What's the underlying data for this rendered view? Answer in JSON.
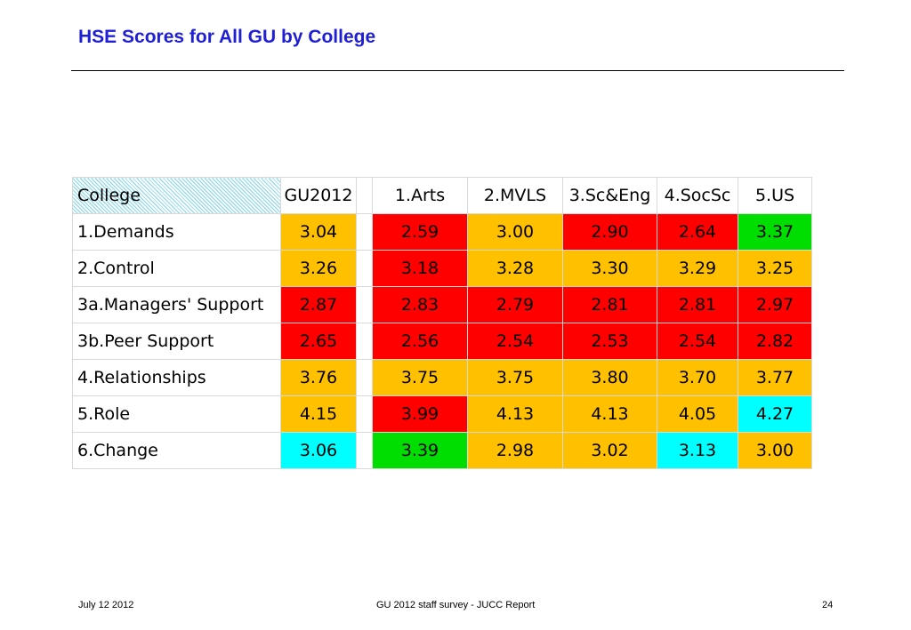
{
  "title": "HSE Scores for All GU by College",
  "colors": {
    "title": "#1f1fd6",
    "red": "#ff0000",
    "amber": "#ffc000",
    "green": "#00dd00",
    "cyan": "#00ffff",
    "header_hatch": "#7fd7ea"
  },
  "table": {
    "headers": [
      "College",
      "GU2012",
      "",
      "1.Arts",
      "2.MVLS",
      "3.Sc&Eng",
      "4.SocSc",
      "5.US"
    ],
    "rows": [
      {
        "label": "1.Demands",
        "values": [
          "3.04",
          "2.59",
          "3.00",
          "2.90",
          "2.64",
          "3.37"
        ],
        "colors": [
          "amber",
          "red",
          "amber",
          "red",
          "red",
          "green"
        ]
      },
      {
        "label": "2.Control",
        "values": [
          "3.26",
          "3.18",
          "3.28",
          "3.30",
          "3.29",
          "3.25"
        ],
        "colors": [
          "amber",
          "red",
          "amber",
          "amber",
          "amber",
          "amber"
        ]
      },
      {
        "label": "3a.Managers' Support",
        "values": [
          "2.87",
          "2.83",
          "2.79",
          "2.81",
          "2.81",
          "2.97"
        ],
        "colors": [
          "red",
          "red",
          "red",
          "red",
          "red",
          "red"
        ]
      },
      {
        "label": "3b.Peer Support",
        "values": [
          "2.65",
          "2.56",
          "2.54",
          "2.53",
          "2.54",
          "2.82"
        ],
        "colors": [
          "red",
          "red",
          "red",
          "red",
          "red",
          "red"
        ]
      },
      {
        "label": "4.Relationships",
        "values": [
          "3.76",
          "3.75",
          "3.75",
          "3.80",
          "3.70",
          "3.77"
        ],
        "colors": [
          "amber",
          "amber",
          "amber",
          "amber",
          "amber",
          "amber"
        ]
      },
      {
        "label": "5.Role",
        "values": [
          "4.15",
          "3.99",
          "4.13",
          "4.13",
          "4.05",
          "4.27"
        ],
        "colors": [
          "amber",
          "red",
          "amber",
          "amber",
          "amber",
          "cyan"
        ]
      },
      {
        "label": "6.Change",
        "values": [
          "3.06",
          "3.39",
          "2.98",
          "3.02",
          "3.13",
          "3.00"
        ],
        "colors": [
          "cyan",
          "green",
          "amber",
          "amber",
          "cyan",
          "amber"
        ]
      }
    ]
  },
  "footer": {
    "date": "July 12 2012",
    "center": "GU 2012 staff survey -  JUCC Report",
    "page": "24"
  }
}
